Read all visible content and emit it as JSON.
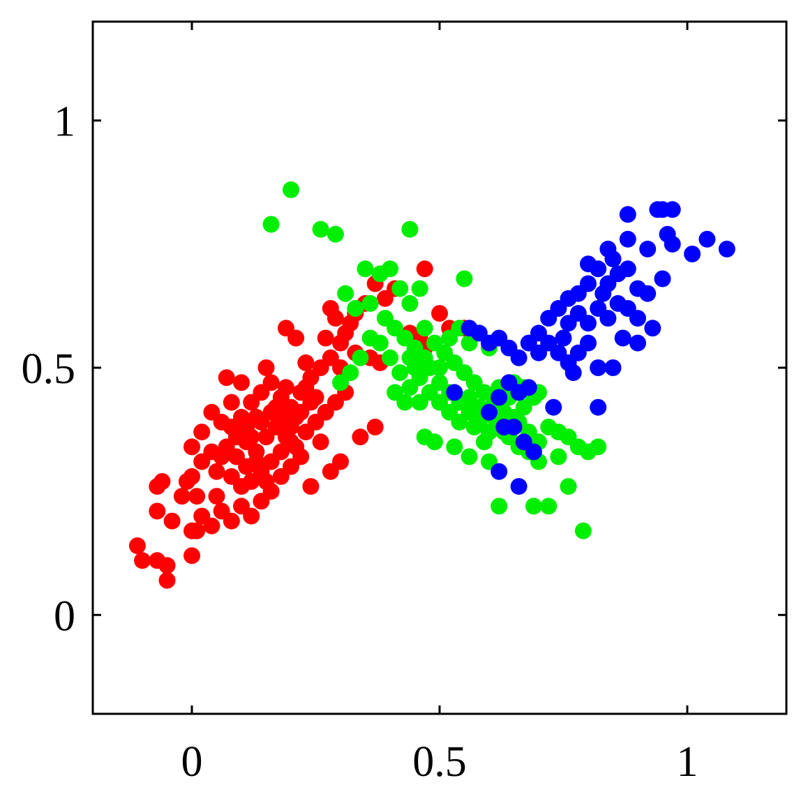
{
  "chart_data": {
    "type": "scatter",
    "title": "",
    "xlabel": "",
    "ylabel": "",
    "xlim": [
      -0.2,
      1.2
    ],
    "ylim": [
      -0.2,
      1.2
    ],
    "grid": false,
    "x_ticks": [
      {
        "value": 0,
        "label": "0"
      },
      {
        "value": 0.5,
        "label": "0.5"
      },
      {
        "value": 1,
        "label": "1"
      }
    ],
    "y_ticks": [
      {
        "value": 0,
        "label": "0"
      },
      {
        "value": 0.5,
        "label": "0.5"
      },
      {
        "value": 1,
        "label": "1"
      }
    ],
    "series": [
      {
        "color": "#ff0000",
        "points": [
          [
            -0.11,
            0.14
          ],
          [
            -0.1,
            0.11
          ],
          [
            -0.07,
            0.11
          ],
          [
            -0.05,
            0.1
          ],
          [
            -0.05,
            0.07
          ],
          [
            -0.04,
            0.19
          ],
          [
            -0.07,
            0.21
          ],
          [
            -0.07,
            0.26
          ],
          [
            -0.06,
            0.27
          ],
          [
            -0.02,
            0.24
          ],
          [
            0.0,
            0.17
          ],
          [
            0.01,
            0.17
          ],
          [
            0.02,
            0.2
          ],
          [
            0.04,
            0.18
          ],
          [
            0.0,
            0.12
          ],
          [
            0.01,
            0.24
          ],
          [
            0.0,
            0.28
          ],
          [
            0.02,
            0.31
          ],
          [
            -0.01,
            0.27
          ],
          [
            0.0,
            0.34
          ],
          [
            0.02,
            0.37
          ],
          [
            0.04,
            0.33
          ],
          [
            0.05,
            0.29
          ],
          [
            0.05,
            0.24
          ],
          [
            0.06,
            0.21
          ],
          [
            0.08,
            0.19
          ],
          [
            0.1,
            0.22
          ],
          [
            0.12,
            0.2
          ],
          [
            0.14,
            0.23
          ],
          [
            0.16,
            0.25
          ],
          [
            0.18,
            0.28
          ],
          [
            0.2,
            0.3
          ],
          [
            0.22,
            0.32
          ],
          [
            0.24,
            0.26
          ],
          [
            0.04,
            0.41
          ],
          [
            0.06,
            0.39
          ],
          [
            0.08,
            0.38
          ],
          [
            0.1,
            0.4
          ],
          [
            0.12,
            0.43
          ],
          [
            0.14,
            0.45
          ],
          [
            0.16,
            0.47
          ],
          [
            0.18,
            0.44
          ],
          [
            0.2,
            0.42
          ],
          [
            0.22,
            0.45
          ],
          [
            0.24,
            0.48
          ],
          [
            0.26,
            0.5
          ],
          [
            0.28,
            0.52
          ],
          [
            0.07,
            0.48
          ],
          [
            0.1,
            0.47
          ],
          [
            0.15,
            0.5
          ],
          [
            0.07,
            0.34
          ],
          [
            0.09,
            0.32
          ],
          [
            0.11,
            0.3
          ],
          [
            0.13,
            0.33
          ],
          [
            0.15,
            0.36
          ],
          [
            0.17,
            0.38
          ],
          [
            0.19,
            0.36
          ],
          [
            0.21,
            0.34
          ],
          [
            0.23,
            0.37
          ],
          [
            0.25,
            0.39
          ],
          [
            0.27,
            0.41
          ],
          [
            0.29,
            0.43
          ],
          [
            0.31,
            0.45
          ],
          [
            0.12,
            0.36
          ],
          [
            0.14,
            0.39
          ],
          [
            0.16,
            0.41
          ],
          [
            0.18,
            0.4
          ],
          [
            0.2,
            0.38
          ],
          [
            0.22,
            0.41
          ],
          [
            0.24,
            0.43
          ],
          [
            0.08,
            0.28
          ],
          [
            0.1,
            0.26
          ],
          [
            0.12,
            0.27
          ],
          [
            0.14,
            0.29
          ],
          [
            0.16,
            0.31
          ],
          [
            0.18,
            0.33
          ],
          [
            0.2,
            0.35
          ],
          [
            0.09,
            0.36
          ],
          [
            0.11,
            0.38
          ],
          [
            0.13,
            0.4
          ],
          [
            0.26,
            0.35
          ],
          [
            0.28,
            0.29
          ],
          [
            0.3,
            0.31
          ],
          [
            0.34,
            0.36
          ],
          [
            0.37,
            0.38
          ],
          [
            0.3,
            0.5
          ],
          [
            0.33,
            0.53
          ],
          [
            0.36,
            0.52
          ],
          [
            0.38,
            0.51
          ],
          [
            0.27,
            0.56
          ],
          [
            0.29,
            0.6
          ],
          [
            0.31,
            0.57
          ],
          [
            0.33,
            0.61
          ],
          [
            0.35,
            0.63
          ],
          [
            0.37,
            0.67
          ],
          [
            0.39,
            0.64
          ],
          [
            0.41,
            0.66
          ],
          [
            0.28,
            0.62
          ],
          [
            0.32,
            0.59
          ],
          [
            0.3,
            0.55
          ],
          [
            0.47,
            0.7
          ],
          [
            0.5,
            0.61
          ],
          [
            0.46,
            0.56
          ],
          [
            0.44,
            0.57
          ],
          [
            0.52,
            0.58
          ],
          [
            0.55,
            0.58
          ],
          [
            0.47,
            0.54
          ],
          [
            0.19,
            0.58
          ],
          [
            0.21,
            0.56
          ],
          [
            0.23,
            0.51
          ],
          [
            0.06,
            0.32
          ],
          [
            0.08,
            0.43
          ],
          [
            0.17,
            0.42
          ],
          [
            0.23,
            0.46
          ],
          [
            0.19,
            0.46
          ],
          [
            0.11,
            0.35
          ],
          [
            0.13,
            0.31
          ],
          [
            0.15,
            0.27
          ],
          [
            0.25,
            0.44
          ],
          [
            0.21,
            0.4
          ]
        ]
      },
      {
        "color": "#00ee00",
        "points": [
          [
            0.2,
            0.86
          ],
          [
            0.16,
            0.79
          ],
          [
            0.26,
            0.78
          ],
          [
            0.29,
            0.77
          ],
          [
            0.44,
            0.78
          ],
          [
            0.55,
            0.68
          ],
          [
            0.35,
            0.7
          ],
          [
            0.38,
            0.69
          ],
          [
            0.4,
            0.7
          ],
          [
            0.42,
            0.66
          ],
          [
            0.44,
            0.63
          ],
          [
            0.46,
            0.66
          ],
          [
            0.31,
            0.65
          ],
          [
            0.33,
            0.62
          ],
          [
            0.36,
            0.63
          ],
          [
            0.39,
            0.6
          ],
          [
            0.41,
            0.58
          ],
          [
            0.43,
            0.56
          ],
          [
            0.45,
            0.54
          ],
          [
            0.47,
            0.52
          ],
          [
            0.49,
            0.55
          ],
          [
            0.51,
            0.53
          ],
          [
            0.53,
            0.51
          ],
          [
            0.55,
            0.49
          ],
          [
            0.57,
            0.47
          ],
          [
            0.59,
            0.45
          ],
          [
            0.61,
            0.43
          ],
          [
            0.63,
            0.41
          ],
          [
            0.65,
            0.4
          ],
          [
            0.67,
            0.42
          ],
          [
            0.69,
            0.44
          ],
          [
            0.42,
            0.49
          ],
          [
            0.44,
            0.46
          ],
          [
            0.46,
            0.43
          ],
          [
            0.48,
            0.45
          ],
          [
            0.5,
            0.47
          ],
          [
            0.52,
            0.45
          ],
          [
            0.54,
            0.43
          ],
          [
            0.56,
            0.41
          ],
          [
            0.58,
            0.39
          ],
          [
            0.6,
            0.37
          ],
          [
            0.62,
            0.38
          ],
          [
            0.64,
            0.36
          ],
          [
            0.66,
            0.39
          ],
          [
            0.68,
            0.37
          ],
          [
            0.7,
            0.35
          ],
          [
            0.72,
            0.38
          ],
          [
            0.74,
            0.37
          ],
          [
            0.76,
            0.36
          ],
          [
            0.78,
            0.34
          ],
          [
            0.74,
            0.32
          ],
          [
            0.7,
            0.31
          ],
          [
            0.68,
            0.33
          ],
          [
            0.6,
            0.31
          ],
          [
            0.56,
            0.32
          ],
          [
            0.53,
            0.34
          ],
          [
            0.49,
            0.35
          ],
          [
            0.47,
            0.36
          ],
          [
            0.62,
            0.22
          ],
          [
            0.69,
            0.22
          ],
          [
            0.72,
            0.22
          ],
          [
            0.76,
            0.26
          ],
          [
            0.79,
            0.17
          ],
          [
            0.8,
            0.33
          ],
          [
            0.82,
            0.34
          ],
          [
            0.58,
            0.57
          ],
          [
            0.6,
            0.54
          ],
          [
            0.56,
            0.55
          ],
          [
            0.54,
            0.58
          ],
          [
            0.52,
            0.56
          ],
          [
            0.5,
            0.5
          ],
          [
            0.48,
            0.5
          ],
          [
            0.46,
            0.48
          ],
          [
            0.44,
            0.52
          ],
          [
            0.4,
            0.52
          ],
          [
            0.38,
            0.55
          ],
          [
            0.36,
            0.56
          ],
          [
            0.34,
            0.52
          ],
          [
            0.3,
            0.47
          ],
          [
            0.32,
            0.49
          ],
          [
            0.56,
            0.44
          ],
          [
            0.58,
            0.42
          ],
          [
            0.6,
            0.41
          ],
          [
            0.62,
            0.46
          ],
          [
            0.65,
            0.47
          ],
          [
            0.67,
            0.46
          ],
          [
            0.7,
            0.45
          ],
          [
            0.63,
            0.37
          ],
          [
            0.66,
            0.34
          ],
          [
            0.5,
            0.43
          ],
          [
            0.52,
            0.41
          ],
          [
            0.54,
            0.39
          ],
          [
            0.57,
            0.38
          ],
          [
            0.59,
            0.35
          ],
          [
            0.61,
            0.4
          ],
          [
            0.64,
            0.44
          ],
          [
            0.41,
            0.45
          ],
          [
            0.43,
            0.43
          ],
          [
            0.45,
            0.5
          ],
          [
            0.47,
            0.58
          ]
        ]
      },
      {
        "color": "#0000ff",
        "points": [
          [
            0.88,
            0.81
          ],
          [
            0.94,
            0.82
          ],
          [
            0.95,
            0.82
          ],
          [
            0.97,
            0.82
          ],
          [
            0.96,
            0.77
          ],
          [
            1.04,
            0.76
          ],
          [
            1.08,
            0.74
          ],
          [
            1.01,
            0.73
          ],
          [
            0.97,
            0.75
          ],
          [
            0.92,
            0.74
          ],
          [
            0.88,
            0.76
          ],
          [
            0.85,
            0.72
          ],
          [
            0.82,
            0.7
          ],
          [
            0.8,
            0.67
          ],
          [
            0.78,
            0.65
          ],
          [
            0.76,
            0.64
          ],
          [
            0.84,
            0.67
          ],
          [
            0.86,
            0.69
          ],
          [
            0.88,
            0.7
          ],
          [
            0.9,
            0.66
          ],
          [
            0.92,
            0.65
          ],
          [
            0.95,
            0.68
          ],
          [
            0.88,
            0.62
          ],
          [
            0.9,
            0.6
          ],
          [
            0.93,
            0.58
          ],
          [
            0.87,
            0.56
          ],
          [
            0.9,
            0.55
          ],
          [
            0.84,
            0.6
          ],
          [
            0.82,
            0.62
          ],
          [
            0.8,
            0.59
          ],
          [
            0.78,
            0.61
          ],
          [
            0.76,
            0.59
          ],
          [
            0.74,
            0.62
          ],
          [
            0.72,
            0.6
          ],
          [
            0.7,
            0.57
          ],
          [
            0.72,
            0.55
          ],
          [
            0.74,
            0.53
          ],
          [
            0.76,
            0.51
          ],
          [
            0.78,
            0.53
          ],
          [
            0.8,
            0.55
          ],
          [
            0.82,
            0.5
          ],
          [
            0.68,
            0.55
          ],
          [
            0.66,
            0.52
          ],
          [
            0.64,
            0.54
          ],
          [
            0.62,
            0.56
          ],
          [
            0.6,
            0.55
          ],
          [
            0.58,
            0.57
          ],
          [
            0.56,
            0.58
          ],
          [
            0.64,
            0.47
          ],
          [
            0.66,
            0.45
          ],
          [
            0.62,
            0.44
          ],
          [
            0.6,
            0.41
          ],
          [
            0.63,
            0.38
          ],
          [
            0.65,
            0.38
          ],
          [
            0.67,
            0.35
          ],
          [
            0.69,
            0.33
          ],
          [
            0.62,
            0.29
          ],
          [
            0.66,
            0.26
          ],
          [
            0.73,
            0.42
          ],
          [
            0.53,
            0.45
          ],
          [
            0.82,
            0.42
          ],
          [
            0.85,
            0.5
          ],
          [
            0.77,
            0.49
          ],
          [
            0.75,
            0.56
          ],
          [
            0.8,
            0.71
          ],
          [
            0.83,
            0.65
          ],
          [
            0.86,
            0.63
          ],
          [
            0.7,
            0.53
          ],
          [
            0.68,
            0.46
          ],
          [
            0.84,
            0.74
          ]
        ]
      }
    ]
  }
}
